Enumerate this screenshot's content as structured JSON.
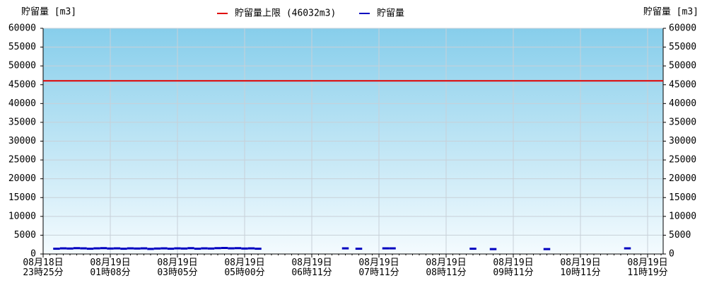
{
  "chart_data": {
    "type": "line",
    "y_label": "貯留量 [m3]",
    "y2_label": "貯留量 [m3]",
    "categories": [
      "08月18日\n23時25分",
      null,
      null,
      null,
      null,
      null,
      null,
      null,
      null,
      null,
      "08月19日\n01時08分",
      null,
      null,
      null,
      null,
      null,
      null,
      null,
      null,
      null,
      "08月19日\n03時05分",
      null,
      null,
      null,
      null,
      null,
      null,
      null,
      null,
      null,
      "08月19日\n05時00分",
      null,
      null,
      null,
      null,
      null,
      null,
      null,
      null,
      null,
      "08月19日\n06時11分",
      null,
      null,
      null,
      null,
      null,
      null,
      null,
      null,
      null,
      "08月19日\n07時11分",
      null,
      null,
      null,
      null,
      null,
      null,
      null,
      null,
      null,
      "08月19日\n08時11分",
      null,
      null,
      null,
      null,
      null,
      null,
      null,
      null,
      null,
      "08月19日\n09時11分",
      null,
      null,
      null,
      null,
      null,
      null,
      null,
      null,
      null,
      "08月19日\n10時11分",
      null,
      null,
      null,
      null,
      null,
      null,
      null,
      null,
      null,
      "08月19日\n11時19分",
      null,
      null
    ],
    "series": [
      {
        "name": "貯留量上限 (46032m3)",
        "color": "#e00000",
        "value": 46032
      },
      {
        "name": "貯留量",
        "color": "#0000c0",
        "values": [
          null,
          null,
          1400,
          1500,
          1450,
          1550,
          1500,
          1400,
          1500,
          1550,
          1450,
          1500,
          1400,
          1500,
          1450,
          1500,
          1350,
          1450,
          1500,
          1400,
          1500,
          1450,
          1550,
          1400,
          1500,
          1450,
          1550,
          1600,
          1500,
          1550,
          1450,
          1500,
          1400,
          null,
          null,
          null,
          null,
          null,
          null,
          null,
          null,
          null,
          null,
          null,
          null,
          1500,
          null,
          1400,
          null,
          null,
          null,
          1500,
          1500,
          null,
          null,
          null,
          null,
          null,
          null,
          null,
          null,
          null,
          null,
          null,
          1400,
          null,
          null,
          1300,
          null,
          null,
          null,
          null,
          null,
          null,
          null,
          1300,
          null,
          null,
          null,
          null,
          null,
          null,
          null,
          null,
          null,
          null,
          null,
          1500,
          null,
          null,
          null,
          null,
          null
        ]
      }
    ],
    "ylim": [
      0,
      60000
    ],
    "yticks": [
      0,
      5000,
      10000,
      15000,
      20000,
      25000,
      30000,
      35000,
      40000,
      45000,
      50000,
      55000,
      60000
    ],
    "y2lim": [
      0,
      60000
    ],
    "y2ticks": [
      0,
      5000,
      10000,
      15000,
      20000,
      25000,
      30000,
      35000,
      40000,
      45000,
      50000,
      55000,
      60000
    ],
    "grid": true
  }
}
